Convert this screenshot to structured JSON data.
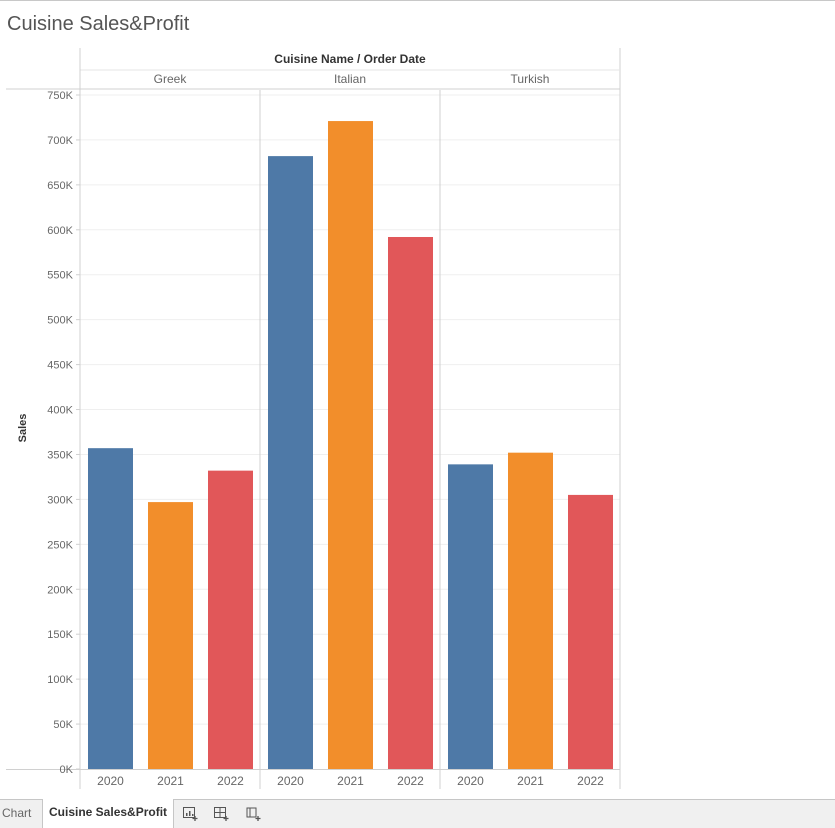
{
  "sheet_title": "Cuisine Sales&Profit",
  "tabs": {
    "previous": "Chart",
    "active": "Cuisine Sales&Profit"
  },
  "toolbar_icons": [
    "new-worksheet-icon",
    "new-dashboard-icon",
    "new-story-icon"
  ],
  "chart_data": {
    "type": "bar",
    "header_title": "Cuisine Name  /  Order Date",
    "ylabel": "Sales",
    "ylim": [
      0,
      750000
    ],
    "yticks": [
      {
        "value": 0,
        "label": "0K"
      },
      {
        "value": 50000,
        "label": "50K"
      },
      {
        "value": 100000,
        "label": "100K"
      },
      {
        "value": 150000,
        "label": "150K"
      },
      {
        "value": 200000,
        "label": "200K"
      },
      {
        "value": 250000,
        "label": "250K"
      },
      {
        "value": 300000,
        "label": "300K"
      },
      {
        "value": 350000,
        "label": "350K"
      },
      {
        "value": 400000,
        "label": "400K"
      },
      {
        "value": 450000,
        "label": "450K"
      },
      {
        "value": 500000,
        "label": "500K"
      },
      {
        "value": 550000,
        "label": "550K"
      },
      {
        "value": 600000,
        "label": "600K"
      },
      {
        "value": 650000,
        "label": "650K"
      },
      {
        "value": 700000,
        "label": "700K"
      },
      {
        "value": 750000,
        "label": "750K"
      }
    ],
    "groups": [
      {
        "name": "Greek",
        "years": [
          "2020",
          "2021",
          "2022"
        ],
        "values": [
          357000,
          297000,
          332000
        ]
      },
      {
        "name": "Italian",
        "years": [
          "2020",
          "2021",
          "2022"
        ],
        "values": [
          682000,
          721000,
          592000
        ]
      },
      {
        "name": "Turkish",
        "years": [
          "2020",
          "2021",
          "2022"
        ],
        "values": [
          339000,
          352000,
          305000
        ]
      }
    ],
    "year_colors": {
      "2020": "#4e79a7",
      "2021": "#f28e2b",
      "2022": "#e15759"
    },
    "grid": true,
    "legend": "none"
  }
}
